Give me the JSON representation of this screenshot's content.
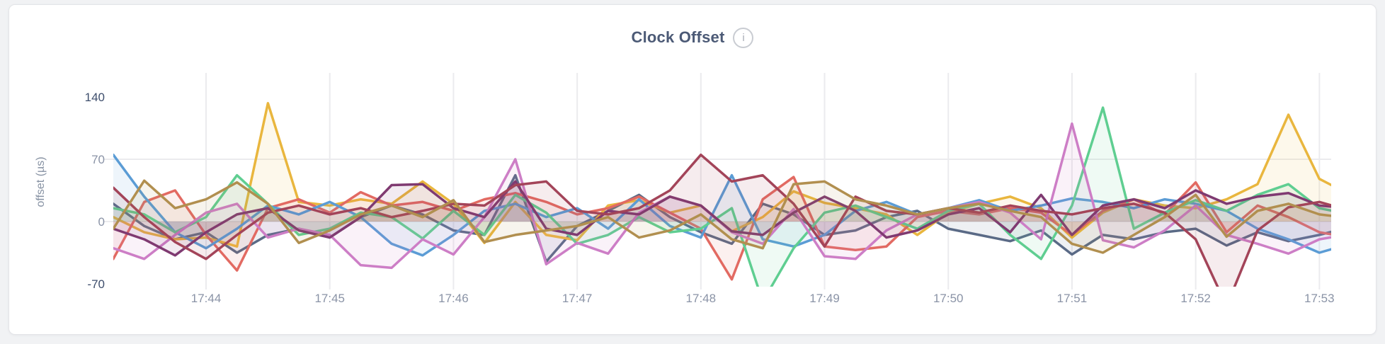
{
  "header": {
    "title": "Clock Offset",
    "info_icon": "i"
  },
  "chart_data": {
    "type": "line",
    "title": "Clock Offset",
    "xlabel": "",
    "ylabel": "offset (µs)",
    "grid": true,
    "legend": "none",
    "x_axis": {
      "tick_labels": [
        "17:44",
        "17:45",
        "17:46",
        "17:47",
        "17:48",
        "17:49",
        "17:50",
        "17:51",
        "17:52",
        "17:53"
      ],
      "tick_minutes": [
        44,
        45,
        46,
        47,
        48,
        49,
        50,
        51,
        52,
        53
      ],
      "visible_start_minute": 43.25,
      "visible_end_minute": 53.08
    },
    "y_axis": {
      "ticks": [
        {
          "label": "140",
          "value": 140,
          "emphasis": true,
          "gridline": false
        },
        {
          "label": "70",
          "value": 70,
          "emphasis": false,
          "gridline": true
        },
        {
          "label": "0",
          "value": 0,
          "emphasis": false,
          "gridline": true
        },
        {
          "label": "-70",
          "value": -70,
          "emphasis": true,
          "gridline": false
        }
      ],
      "clip_min": -73,
      "unit": "µs"
    },
    "sampling": {
      "start_minute": 43.25,
      "step_minute": 0.25,
      "points": 41
    },
    "fill_to_zero": true,
    "fill_opacity": 0.1,
    "colors": {
      "slate": "#5A6A86",
      "gold": "#E9B63E",
      "red": "#E26A62",
      "blue": "#5B9CD5",
      "green": "#5FCE91",
      "orchid": "#CD7EC6",
      "purple": "#7F3A71",
      "maroon": "#A34459",
      "khaki": "#B18F4F"
    },
    "series": [
      {
        "name": "series-slate",
        "color": "#5A6A86",
        "values": [
          20,
          -5,
          -20,
          -12,
          -35,
          -15,
          -8,
          -18,
          5,
          18,
          8,
          -10,
          -15,
          52,
          -45,
          -5,
          12,
          30,
          5,
          -12,
          -25,
          20,
          8,
          -15,
          -10,
          5,
          12,
          -8,
          -15,
          -22,
          -10,
          -37,
          -15,
          -20,
          -12,
          -8,
          -27,
          -12,
          -22,
          -15,
          -6
        ]
      },
      {
        "name": "series-gold",
        "color": "#E9B63E",
        "values": [
          5,
          -12,
          -20,
          -18,
          -28,
          133,
          22,
          18,
          25,
          20,
          45,
          20,
          -24,
          22,
          -15,
          -21,
          18,
          24,
          10,
          18,
          -11,
          5,
          34,
          21,
          15,
          8,
          -15,
          10,
          20,
          28,
          15,
          -18,
          10,
          25,
          18,
          15,
          25,
          42,
          120,
          48,
          30
        ]
      },
      {
        "name": "series-red",
        "color": "#E26A62",
        "values": [
          -42,
          22,
          35,
          -15,
          -55,
          15,
          25,
          10,
          33,
          18,
          22,
          12,
          25,
          32,
          22,
          8,
          15,
          28,
          10,
          -8,
          -65,
          25,
          50,
          -28,
          -32,
          -28,
          5,
          12,
          8,
          15,
          10,
          -15,
          12,
          25,
          8,
          44,
          -12,
          18,
          5,
          -12,
          -18
        ]
      },
      {
        "name": "series-blue",
        "color": "#5B9CD5",
        "values": [
          75,
          28,
          -12,
          -30,
          -8,
          18,
          8,
          22,
          5,
          -25,
          -38,
          -15,
          12,
          20,
          5,
          15,
          -8,
          25,
          -5,
          -18,
          52,
          -20,
          -28,
          -15,
          12,
          22,
          8,
          15,
          24,
          12,
          18,
          26,
          22,
          15,
          25,
          20,
          12,
          -8,
          -20,
          -35,
          -25
        ]
      },
      {
        "name": "series-green",
        "color": "#5FCE91",
        "values": [
          15,
          8,
          -12,
          5,
          52,
          20,
          -15,
          -8,
          10,
          5,
          -19,
          12,
          -15,
          30,
          10,
          -25,
          -15,
          5,
          -12,
          -8,
          15,
          -90,
          -30,
          10,
          18,
          5,
          -8,
          12,
          20,
          -15,
          -42,
          18,
          128,
          -8,
          10,
          24,
          12,
          30,
          42,
          15,
          8
        ]
      },
      {
        "name": "series-orchid",
        "color": "#CD7EC6",
        "values": [
          -30,
          -42,
          -15,
          10,
          20,
          -18,
          -8,
          -15,
          -49,
          -52,
          -20,
          -37,
          5,
          70,
          -48,
          -24,
          -36,
          10,
          28,
          18,
          -12,
          -25,
          14,
          -39,
          -42,
          -10,
          8,
          15,
          22,
          10,
          -20,
          110,
          -21,
          -29,
          -10,
          18,
          -15,
          -25,
          -36,
          -20,
          -14
        ]
      },
      {
        "name": "series-purple",
        "color": "#7F3A71",
        "values": [
          -8,
          -20,
          -38,
          -12,
          8,
          15,
          -10,
          -18,
          5,
          41,
          42,
          15,
          5,
          45,
          -8,
          -15,
          12,
          8,
          28,
          18,
          -11,
          -15,
          10,
          28,
          12,
          -18,
          -10,
          8,
          15,
          -12,
          30,
          -15,
          18,
          25,
          15,
          35,
          20,
          28,
          32,
          18,
          15
        ]
      },
      {
        "name": "series-maroon",
        "color": "#A34459",
        "values": [
          38,
          5,
          -23,
          -42,
          -15,
          10,
          18,
          8,
          15,
          5,
          12,
          20,
          18,
          41,
          45,
          12,
          8,
          15,
          35,
          75,
          45,
          52,
          20,
          -28,
          28,
          12,
          8,
          15,
          10,
          18,
          12,
          8,
          15,
          20,
          10,
          -20,
          -95,
          -10,
          16,
          22,
          12
        ]
      },
      {
        "name": "series-khaki",
        "color": "#B18F4F",
        "values": [
          -8,
          46,
          15,
          25,
          44,
          20,
          -24,
          -10,
          8,
          18,
          5,
          24,
          -23,
          -15,
          -10,
          -5,
          5,
          -18,
          -10,
          8,
          -20,
          -30,
          42,
          45,
          25,
          18,
          8,
          15,
          20,
          12,
          5,
          -25,
          -35,
          -15,
          5,
          30,
          -17,
          12,
          20,
          8,
          4
        ]
      }
    ]
  },
  "style": {
    "page_background": "#f1f2f4",
    "card_background": "#ffffff",
    "card_border": "#e3e4e8",
    "title_color": "#4c5a76",
    "tick_color": "#8a93a6",
    "tick_emphasis_color": "#3e4e6c",
    "axis_label_color": "#8792a3",
    "gridline_color": "#ebebee"
  }
}
